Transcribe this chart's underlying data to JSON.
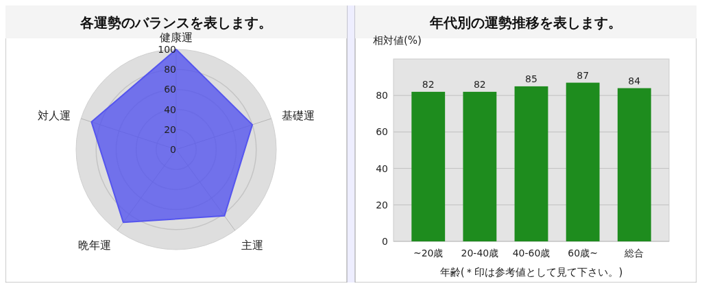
{
  "chart_data": [
    {
      "type": "radar",
      "title": "各運勢のバランスを表します。",
      "categories": [
        "健康運",
        "基礎運",
        "主運",
        "晩年運",
        "対人運"
      ],
      "series": [
        {
          "color": "#5555ee",
          "values": [
            100,
            80,
            82,
            90,
            89
          ]
        }
      ],
      "ylim": [
        0,
        100
      ],
      "yticks": [
        0,
        20,
        40,
        60,
        80,
        100
      ],
      "grid": true
    },
    {
      "type": "bar",
      "title": "年代別の運勢推移を表します。",
      "ylabel": "相対値(%)",
      "xlabel": "年齢(＊印は参考値として見て下さい。)",
      "categories": [
        "~20歳",
        "20-40歳",
        "40-60歳",
        "60歳~",
        "総合"
      ],
      "values": [
        82,
        82,
        85,
        87,
        84
      ],
      "color": "#1e8c1e",
      "ylim": [
        0,
        100
      ],
      "yticks": [
        0,
        20,
        40,
        60,
        80
      ],
      "grid": "y",
      "data_labels": true
    }
  ]
}
